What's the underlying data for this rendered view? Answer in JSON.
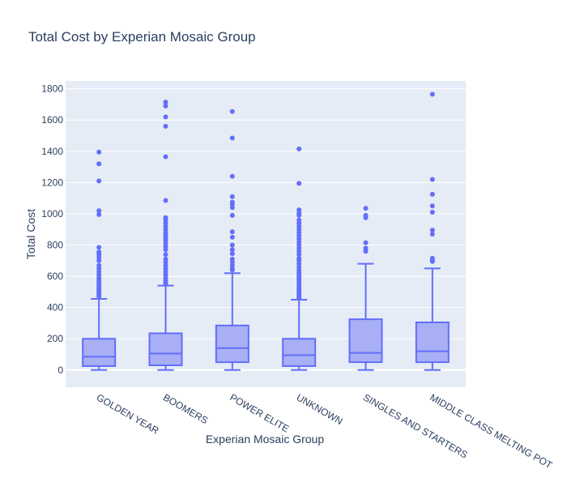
{
  "chart_data": {
    "type": "box",
    "title": "Total Cost by Experian Mosaic Group",
    "xlabel": "Experian Mosaic Group",
    "ylabel": "Total Cost",
    "ylim": [
      -110,
      1850
    ],
    "yticks": [
      0,
      200,
      400,
      600,
      800,
      1000,
      1200,
      1400,
      1600,
      1800
    ],
    "grid": true,
    "colors": {
      "box_line": "#636efa",
      "box_fill": "#a8aff5",
      "plot_bg": "#e5ecf6",
      "grid": "#ffffff",
      "text": "#2a3f5f"
    },
    "categories": [
      "GOLDEN YEAR",
      "BOOMERS",
      "POWER ELITE",
      "UNKNOWN",
      "SINGLES AND STARTERS",
      "MIDDLE CLASS MELTING POT"
    ],
    "boxes": [
      {
        "category": "GOLDEN YEAR",
        "min": 0,
        "q1": 25,
        "median": 85,
        "q3": 200,
        "max": 455,
        "outliers": [
          470,
          480,
          490,
          500,
          510,
          520,
          530,
          545,
          560,
          575,
          590,
          610,
          630,
          650,
          670,
          700,
          720,
          740,
          755,
          785,
          995,
          1020,
          1210,
          1320,
          1395
        ]
      },
      {
        "category": "BOOMERS",
        "min": 0,
        "q1": 30,
        "median": 105,
        "q3": 235,
        "max": 540,
        "outliers": [
          550,
          560,
          575,
          590,
          610,
          630,
          650,
          670,
          690,
          710,
          740,
          770,
          790,
          810,
          830,
          845,
          860,
          880,
          900,
          920,
          940,
          960,
          975,
          1085,
          1365,
          1560,
          1620,
          1690,
          1715
        ]
      },
      {
        "category": "POWER ELITE",
        "min": 0,
        "q1": 50,
        "median": 140,
        "q3": 285,
        "max": 620,
        "outliers": [
          640,
          650,
          670,
          690,
          710,
          745,
          770,
          800,
          850,
          885,
          990,
          1040,
          1060,
          1075,
          1110,
          1240,
          1485,
          1655
        ]
      },
      {
        "category": "UNKNOWN",
        "min": 0,
        "q1": 25,
        "median": 95,
        "q3": 200,
        "max": 450,
        "outliers": [
          460,
          470,
          480,
          490,
          500,
          510,
          520,
          535,
          550,
          565,
          580,
          595,
          610,
          625,
          640,
          660,
          680,
          700,
          715,
          740,
          760,
          780,
          800,
          820,
          840,
          860,
          880,
          900,
          920,
          940,
          960,
          990,
          1005,
          1025,
          1195,
          1415
        ]
      },
      {
        "category": "SINGLES AND STARTERS",
        "min": 0,
        "q1": 50,
        "median": 110,
        "q3": 325,
        "max": 680,
        "outliers": [
          760,
          780,
          815,
          975,
          990,
          1035
        ]
      },
      {
        "category": "MIDDLE CLASS MELTING POT",
        "min": 0,
        "q1": 50,
        "median": 120,
        "q3": 305,
        "max": 650,
        "outliers": [
          695,
          705,
          715,
          870,
          895,
          1010,
          1050,
          1125,
          1220,
          1765
        ]
      }
    ]
  }
}
